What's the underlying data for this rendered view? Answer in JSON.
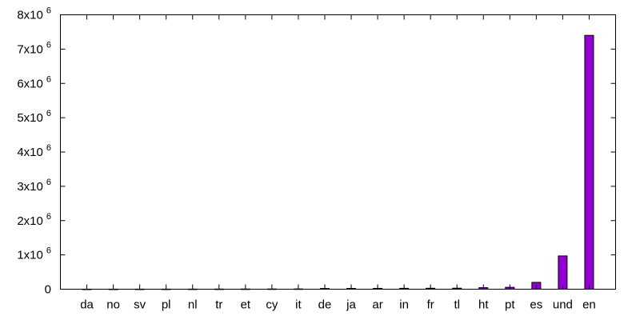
{
  "chart_data": {
    "type": "bar",
    "categories": [
      "da",
      "no",
      "sv",
      "pl",
      "nl",
      "tr",
      "et",
      "cy",
      "it",
      "de",
      "ja",
      "ar",
      "in",
      "fr",
      "tl",
      "ht",
      "pt",
      "es",
      "und",
      "en"
    ],
    "values": [
      2000,
      2500,
      3000,
      3500,
      4000,
      5000,
      6000,
      7000,
      8000,
      20000,
      22000,
      24000,
      26000,
      28000,
      30000,
      45000,
      55000,
      200000,
      970000,
      7400000
    ],
    "ylim": [
      0,
      8000000
    ],
    "yticks": [
      {
        "value": 0,
        "base": "0",
        "exp": ""
      },
      {
        "value": 1000000,
        "base": "1x10",
        "exp": "6"
      },
      {
        "value": 2000000,
        "base": "2x10",
        "exp": "6"
      },
      {
        "value": 3000000,
        "base": "3x10",
        "exp": "6"
      },
      {
        "value": 4000000,
        "base": "4x10",
        "exp": "6"
      },
      {
        "value": 5000000,
        "base": "5x10",
        "exp": "6"
      },
      {
        "value": 6000000,
        "base": "6x10",
        "exp": "6"
      },
      {
        "value": 7000000,
        "base": "7x10",
        "exp": "6"
      },
      {
        "value": 8000000,
        "base": "8x10",
        "exp": "6"
      }
    ],
    "bar_color": "#9400d3",
    "title": "",
    "xlabel": "",
    "ylabel": "",
    "grid": false
  }
}
